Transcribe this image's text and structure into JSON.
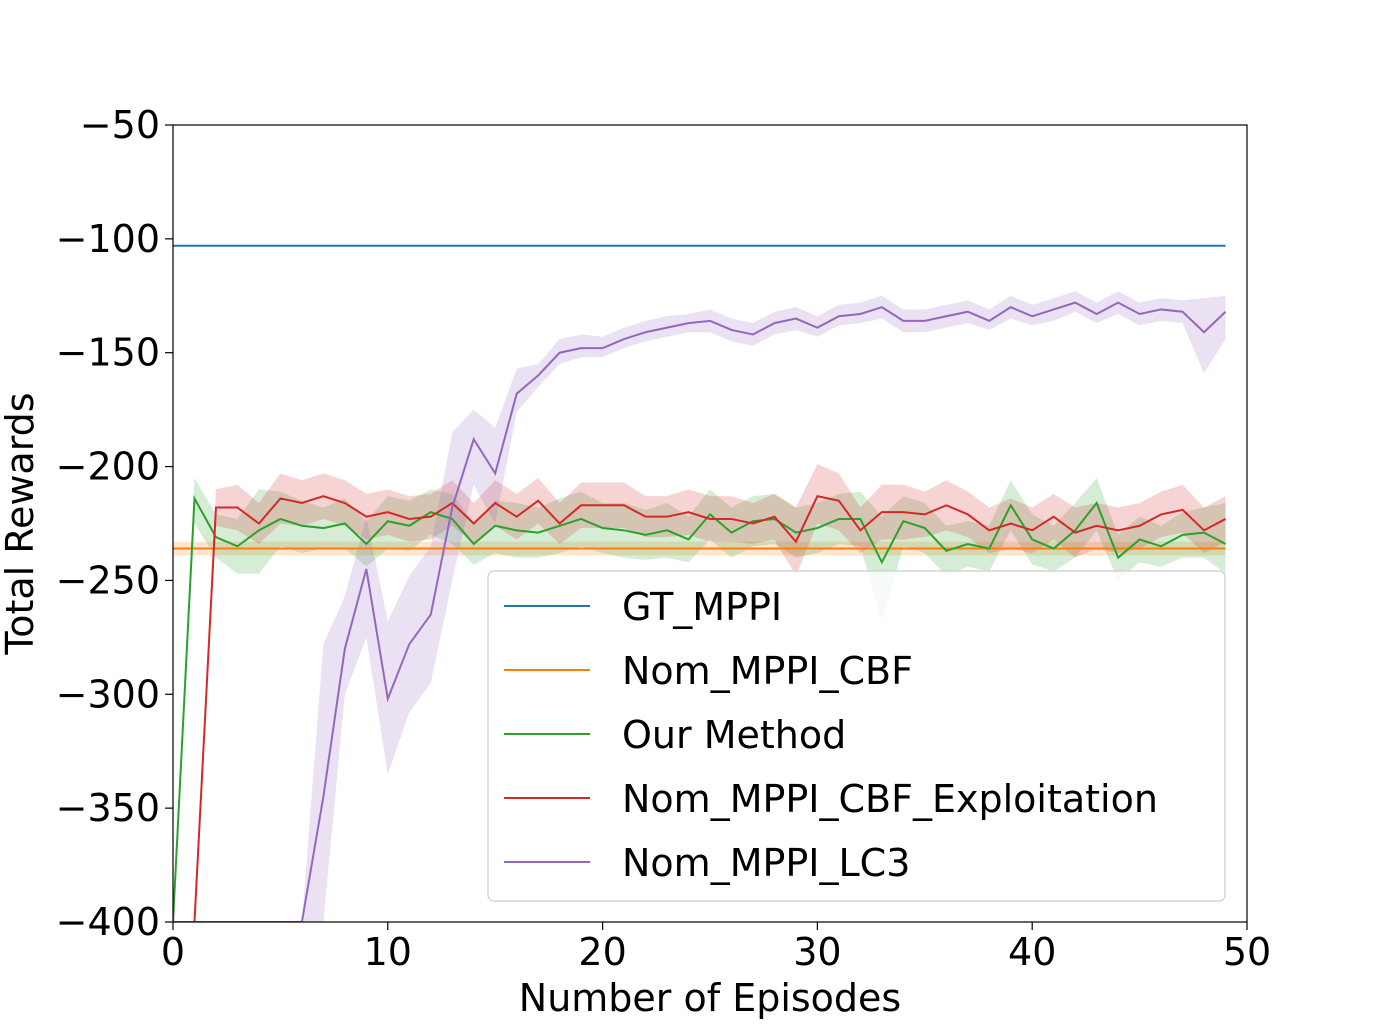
{
  "chart_data": {
    "type": "line",
    "title": "",
    "xlabel": "Number of Episodes",
    "ylabel": "Total Rewards",
    "xlim": [
      0,
      50
    ],
    "ylim": [
      -400,
      -50
    ],
    "xticks": [
      0,
      10,
      20,
      30,
      40,
      50
    ],
    "xtick_labels": [
      "0",
      "10",
      "20",
      "30",
      "40",
      "50"
    ],
    "yticks": [
      -50,
      -100,
      -150,
      -200,
      -250,
      -300,
      -350,
      -400
    ],
    "ytick_labels": [
      "−50",
      "−100",
      "−150",
      "−200",
      "−250",
      "−300",
      "−350",
      "−400"
    ],
    "grid": false,
    "legend_position": "lower-right",
    "series": [
      {
        "name": "GT_MPPI",
        "color": "#1f77b4",
        "x": [
          0,
          49
        ],
        "y": [
          -103,
          -103
        ]
      },
      {
        "name": "Nom_MPPI_CBF",
        "color": "#ff7f0e",
        "x": [
          0,
          49
        ],
        "y": [
          -236,
          -236
        ],
        "band_lower": [
          -239,
          -239
        ],
        "band_upper": [
          -233,
          -233
        ]
      },
      {
        "name": "Our Method",
        "color": "#2ca02c",
        "x": [
          0,
          1,
          2,
          3,
          4,
          5,
          6,
          7,
          8,
          9,
          10,
          11,
          12,
          13,
          14,
          15,
          16,
          17,
          18,
          19,
          20,
          21,
          22,
          23,
          24,
          25,
          26,
          27,
          28,
          29,
          30,
          31,
          32,
          33,
          34,
          35,
          36,
          37,
          38,
          39,
          40,
          41,
          42,
          43,
          44,
          45,
          46,
          47,
          48,
          49
        ],
        "y": [
          -400,
          -214,
          -231,
          -235,
          -228,
          -223,
          -226,
          -227,
          -225,
          -234,
          -224,
          -226,
          -220,
          -223,
          -234,
          -226,
          -228,
          -229,
          -226,
          -223,
          -227,
          -228,
          -230,
          -228,
          -232,
          -221,
          -229,
          -224,
          -223,
          -229,
          -227,
          -223,
          -223,
          -242,
          -224,
          -227,
          -237,
          -234,
          -236,
          -217,
          -232,
          -236,
          -228,
          -216,
          -240,
          -232,
          -235,
          -230,
          -229,
          -234
        ],
        "band_lower": [
          -400,
          -225,
          -240,
          -247,
          -247,
          -235,
          -238,
          -236,
          -236,
          -244,
          -236,
          -237,
          -230,
          -234,
          -243,
          -238,
          -240,
          -240,
          -238,
          -235,
          -238,
          -240,
          -241,
          -240,
          -242,
          -232,
          -240,
          -235,
          -234,
          -240,
          -238,
          -234,
          -235,
          -268,
          -235,
          -238,
          -248,
          -244,
          -246,
          -228,
          -243,
          -246,
          -240,
          -228,
          -250,
          -242,
          -244,
          -240,
          -240,
          -247
        ],
        "band_upper": [
          -400,
          -205,
          -221,
          -223,
          -210,
          -211,
          -215,
          -218,
          -214,
          -224,
          -213,
          -215,
          -210,
          -212,
          -225,
          -215,
          -216,
          -218,
          -214,
          -211,
          -216,
          -216,
          -219,
          -216,
          -222,
          -210,
          -218,
          -213,
          -212,
          -218,
          -216,
          -212,
          -211,
          -222,
          -213,
          -216,
          -226,
          -224,
          -226,
          -206,
          -221,
          -226,
          -216,
          -205,
          -230,
          -222,
          -226,
          -220,
          -218,
          -216
        ]
      },
      {
        "name": "Nom_MPPI_CBF_Exploitation",
        "color": "#d62728",
        "x": [
          0,
          1,
          2,
          3,
          4,
          5,
          6,
          7,
          8,
          9,
          10,
          11,
          12,
          13,
          14,
          15,
          16,
          17,
          18,
          19,
          20,
          21,
          22,
          23,
          24,
          25,
          26,
          27,
          28,
          29,
          30,
          31,
          32,
          33,
          34,
          35,
          36,
          37,
          38,
          39,
          40,
          41,
          42,
          43,
          44,
          45,
          46,
          47,
          48,
          49
        ],
        "y": [
          -400,
          -400,
          -218,
          -218,
          -225,
          -214,
          -216,
          -213,
          -216,
          -222,
          -220,
          -223,
          -222,
          -216,
          -225,
          -216,
          -222,
          -215,
          -225,
          -217,
          -217,
          -217,
          -222,
          -222,
          -220,
          -223,
          -223,
          -225,
          -222,
          -233,
          -213,
          -215,
          -228,
          -220,
          -220,
          -221,
          -217,
          -221,
          -228,
          -225,
          -228,
          -222,
          -229,
          -226,
          -228,
          -226,
          -221,
          -219,
          -228,
          -223
        ],
        "band_lower": [
          -400,
          -400,
          -226,
          -228,
          -234,
          -225,
          -226,
          -223,
          -226,
          -232,
          -230,
          -233,
          -232,
          -226,
          -234,
          -226,
          -232,
          -225,
          -234,
          -227,
          -227,
          -227,
          -231,
          -231,
          -230,
          -233,
          -233,
          -234,
          -232,
          -248,
          -225,
          -228,
          -238,
          -232,
          -232,
          -231,
          -228,
          -231,
          -238,
          -236,
          -238,
          -232,
          -240,
          -236,
          -238,
          -236,
          -231,
          -229,
          -238,
          -233
        ],
        "band_upper": [
          -400,
          -400,
          -210,
          -208,
          -216,
          -203,
          -206,
          -203,
          -206,
          -212,
          -210,
          -213,
          -212,
          -206,
          -216,
          -206,
          -212,
          -205,
          -216,
          -207,
          -207,
          -207,
          -213,
          -213,
          -210,
          -213,
          -213,
          -216,
          -212,
          -218,
          -199,
          -203,
          -218,
          -208,
          -208,
          -211,
          -206,
          -211,
          -218,
          -214,
          -218,
          -212,
          -218,
          -216,
          -218,
          -216,
          -211,
          -208,
          -218,
          -213
        ]
      },
      {
        "name": "Nom_MPPI_LC3",
        "color": "#9467bd",
        "x": [
          0,
          1,
          2,
          3,
          4,
          5,
          6,
          7,
          8,
          9,
          10,
          11,
          12,
          13,
          14,
          15,
          16,
          17,
          18,
          19,
          20,
          21,
          22,
          23,
          24,
          25,
          26,
          27,
          28,
          29,
          30,
          31,
          32,
          33,
          34,
          35,
          36,
          37,
          38,
          39,
          40,
          41,
          42,
          43,
          44,
          45,
          46,
          47,
          48,
          49
        ],
        "y": [
          -400,
          -400,
          -400,
          -400,
          -400,
          -400,
          -400,
          -345,
          -280,
          -245,
          -302,
          -278,
          -265,
          -218,
          -188,
          -203,
          -168,
          -160,
          -150,
          -148,
          -148,
          -144,
          -141,
          -139,
          -137,
          -136,
          -140,
          -142,
          -137,
          -135,
          -139,
          -134,
          -133,
          -130,
          -136,
          -136,
          -134,
          -132,
          -136,
          -130,
          -134,
          -131,
          -128,
          -133,
          -128,
          -133,
          -131,
          -132,
          -141,
          -132
        ],
        "band_lower": [
          -400,
          -400,
          -400,
          -400,
          -400,
          -400,
          -400,
          -400,
          -300,
          -275,
          -335,
          -308,
          -295,
          -250,
          -208,
          -225,
          -176,
          -165,
          -155,
          -152,
          -152,
          -148,
          -145,
          -143,
          -141,
          -141,
          -145,
          -147,
          -142,
          -140,
          -143,
          -138,
          -137,
          -135,
          -141,
          -141,
          -139,
          -137,
          -140,
          -135,
          -138,
          -136,
          -132,
          -137,
          -133,
          -138,
          -136,
          -137,
          -159,
          -144
        ],
        "band_upper": [
          -400,
          -400,
          -400,
          -400,
          -400,
          -400,
          -400,
          -278,
          -257,
          -222,
          -268,
          -248,
          -235,
          -185,
          -175,
          -183,
          -157,
          -155,
          -144,
          -142,
          -143,
          -139,
          -136,
          -134,
          -133,
          -131,
          -135,
          -137,
          -132,
          -130,
          -134,
          -129,
          -128,
          -125,
          -131,
          -131,
          -129,
          -127,
          -131,
          -125,
          -129,
          -126,
          -123,
          -128,
          -123,
          -128,
          -126,
          -127,
          -126,
          -125
        ]
      }
    ]
  }
}
